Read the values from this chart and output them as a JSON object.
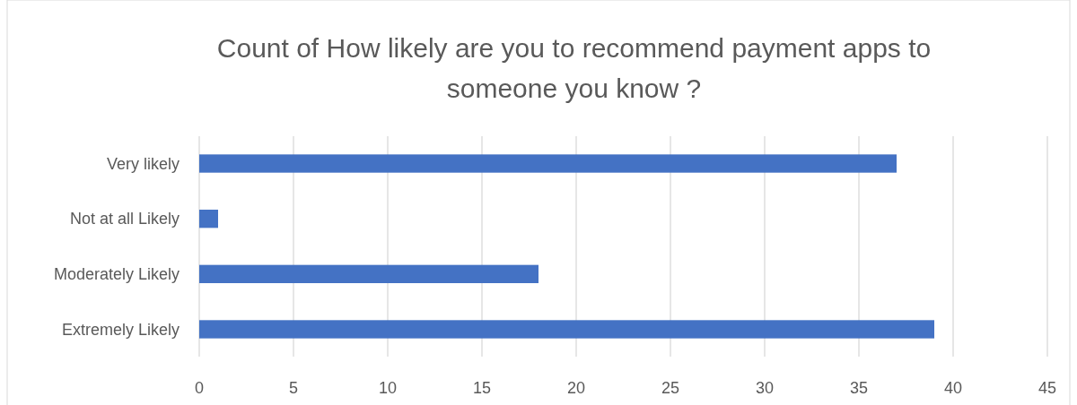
{
  "chart_data": {
    "type": "bar",
    "orientation": "horizontal",
    "title": "Count of How likely are you to recommend payment apps to someone you know ?",
    "categories": [
      "Very likely",
      "Not at all Likely",
      "Moderately Likely",
      "Extremely Likely"
    ],
    "values": [
      37,
      1,
      18,
      39
    ],
    "color": "#4472c4",
    "xlim": [
      0,
      45
    ],
    "xticks": [
      0,
      5,
      10,
      15,
      20,
      25,
      30,
      35,
      40,
      45
    ],
    "grid": "x"
  }
}
